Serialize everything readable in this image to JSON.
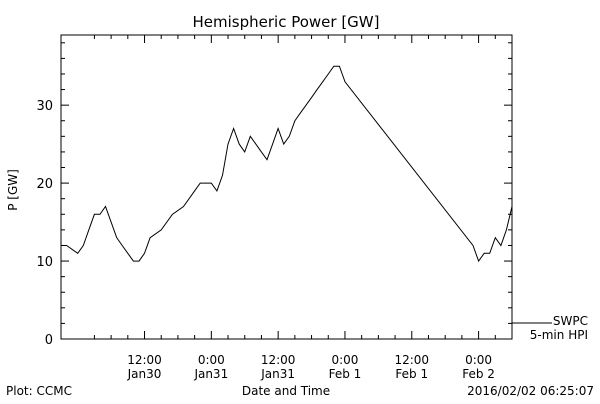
{
  "chart_data": {
    "type": "line",
    "title": "Hemispheric Power [GW]",
    "xlabel": "Date and Time",
    "ylabel": "P [GW]",
    "ylim": [
      0,
      39
    ],
    "xlim": [
      "2016-01-29T21:00",
      "2016-02-02T06:00"
    ],
    "grid": false,
    "yticks": [
      0,
      10,
      20,
      30
    ],
    "xticks": [
      {
        "t": "2016-01-30T12:00",
        "line1": "12:00",
        "line2": "Jan30"
      },
      {
        "t": "2016-01-31T00:00",
        "line1": "0:00",
        "line2": "Jan31"
      },
      {
        "t": "2016-01-31T12:00",
        "line1": "12:00",
        "line2": "Jan31"
      },
      {
        "t": "2016-02-01T00:00",
        "line1": "0:00",
        "line2": "Feb 1"
      },
      {
        "t": "2016-02-01T12:00",
        "line1": "12:00",
        "line2": "Feb 1"
      },
      {
        "t": "2016-02-02T00:00",
        "line1": "0:00",
        "line2": "Feb 2"
      }
    ],
    "legend": {
      "position": "bottom-right",
      "entries": [
        "SWPC",
        "5-min HPI"
      ]
    },
    "series": [
      {
        "name": "SWPC",
        "color": "#000000",
        "x": [
          "2016-01-29T21:00",
          "2016-01-29T22:00",
          "2016-01-30T00:00",
          "2016-01-30T01:00",
          "2016-01-30T02:00",
          "2016-01-30T03:00",
          "2016-01-30T04:00",
          "2016-01-30T05:00",
          "2016-01-30T06:00",
          "2016-01-30T07:00",
          "2016-01-30T08:00",
          "2016-01-30T09:00",
          "2016-01-30T10:00",
          "2016-01-30T11:00",
          "2016-01-30T12:00",
          "2016-01-30T13:00",
          "2016-01-30T15:00",
          "2016-01-30T17:00",
          "2016-01-30T19:00",
          "2016-01-30T21:00",
          "2016-01-30T22:00",
          "2016-01-30T23:00",
          "2016-01-31T00:00",
          "2016-01-31T01:00",
          "2016-01-31T02:00",
          "2016-01-31T03:00",
          "2016-01-31T04:00",
          "2016-01-31T05:00",
          "2016-01-31T06:00",
          "2016-01-31T07:00",
          "2016-01-31T09:00",
          "2016-01-31T10:00",
          "2016-01-31T11:00",
          "2016-01-31T12:00",
          "2016-01-31T13:00",
          "2016-01-31T14:00",
          "2016-01-31T15:00",
          "2016-01-31T16:00",
          "2016-01-31T17:00",
          "2016-01-31T18:00",
          "2016-01-31T19:00",
          "2016-01-31T20:00",
          "2016-01-31T21:00",
          "2016-01-31T22:00",
          "2016-01-31T23:00",
          "2016-01-31T23:30",
          "2016-02-01T00:00",
          "2016-02-01T23:00",
          "2016-02-02T00:00",
          "2016-02-02T01:00",
          "2016-02-02T02:00",
          "2016-02-02T03:00",
          "2016-02-02T04:00",
          "2016-02-02T05:00",
          "2016-02-02T06:00"
        ],
        "y": [
          12,
          12,
          11,
          12,
          14,
          16,
          16,
          17,
          15,
          13,
          12,
          11,
          10,
          10,
          11,
          13,
          14,
          16,
          17,
          19,
          20,
          20,
          20,
          19,
          21,
          25,
          27,
          25,
          24,
          26,
          24,
          23,
          25,
          27,
          25,
          26,
          28,
          29,
          30,
          31,
          32,
          33,
          34,
          35,
          35,
          34,
          33,
          12,
          10,
          11,
          11,
          13,
          12,
          14,
          17
        ]
      }
    ]
  },
  "footer": {
    "left": "Plot: CCMC",
    "right": "2016/02/02 06:25:07"
  }
}
